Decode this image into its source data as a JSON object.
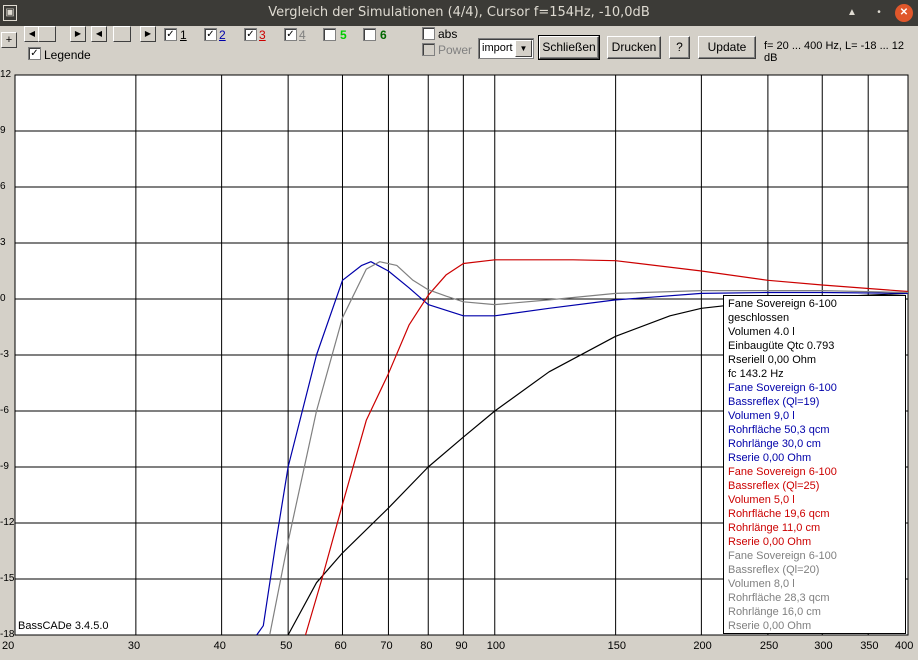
{
  "window": {
    "title": "Vergleich der Simulationen (4/4), Cursor f=154Hz, -10,0dB",
    "icon": "app-icon",
    "buttons": [
      "maximize-icon",
      "restore-icon",
      "close-icon"
    ]
  },
  "toolbar": {
    "plus_label": "+",
    "nav_icons": [
      "step-left-icon",
      "step-left-icon",
      "step-right-icon",
      "step-left-icon",
      "step-right-icon"
    ],
    "checkboxes": [
      {
        "label": "1",
        "checked": true,
        "color": "#000000"
      },
      {
        "label": "2",
        "checked": true,
        "color": "#0000aa"
      },
      {
        "label": "3",
        "checked": true,
        "color": "#cc0000"
      },
      {
        "label": "4",
        "checked": true,
        "color": "#808080"
      },
      {
        "label": "5",
        "checked": false,
        "color": "#00cc00"
      },
      {
        "label": "6",
        "checked": false,
        "color": "#006600"
      }
    ],
    "legende_label": "Legende",
    "abs_label": "abs",
    "power_label": "Power",
    "import_value": "import",
    "close_label": "Schließen",
    "print_label": "Drucken",
    "help_label": "?",
    "update_label": "Update",
    "range_info": "f= 20 ... 400 Hz, L= -18 ... 12 dB"
  },
  "chart_data": {
    "type": "line",
    "x_scale": "log",
    "xlim": [
      20,
      400
    ],
    "ylim": [
      -18,
      12
    ],
    "x_ticks": [
      20,
      30,
      40,
      50,
      60,
      70,
      80,
      90,
      100,
      150,
      200,
      250,
      300,
      350,
      400
    ],
    "y_ticks": [
      12,
      9,
      6,
      3,
      0,
      -3,
      -6,
      -9,
      -12,
      -15,
      -18
    ],
    "y_tick_labels": [
      "12",
      "9",
      "6",
      "3",
      "0",
      "-3",
      "-6",
      "-9",
      "-12",
      "-15",
      "-18"
    ],
    "grid": true,
    "series": [
      {
        "color": "#000000",
        "points": [
          [
            50,
            -18
          ],
          [
            55,
            -15.2
          ],
          [
            60,
            -13.6
          ],
          [
            70,
            -11.2
          ],
          [
            80,
            -9.0
          ],
          [
            90,
            -7.4
          ],
          [
            100,
            -6.0
          ],
          [
            120,
            -3.9
          ],
          [
            150,
            -2.0
          ],
          [
            180,
            -0.9
          ],
          [
            200,
            -0.5
          ],
          [
            250,
            -0.1
          ],
          [
            300,
            0.1
          ],
          [
            400,
            0.3
          ]
        ]
      },
      {
        "color": "#0000aa",
        "points": [
          [
            45,
            -18
          ],
          [
            46,
            -17.5
          ],
          [
            48,
            -13
          ],
          [
            50,
            -9
          ],
          [
            55,
            -3
          ],
          [
            60,
            1
          ],
          [
            64,
            1.8
          ],
          [
            66,
            2.0
          ],
          [
            70,
            1.5
          ],
          [
            75,
            0.6
          ],
          [
            80,
            -0.3
          ],
          [
            90,
            -0.9
          ],
          [
            100,
            -0.9
          ],
          [
            120,
            -0.5
          ],
          [
            150,
            -0.05
          ],
          [
            200,
            0.3
          ],
          [
            250,
            0.35
          ],
          [
            300,
            0.35
          ],
          [
            400,
            0.3
          ]
        ]
      },
      {
        "color": "#cc0000",
        "points": [
          [
            53,
            -18
          ],
          [
            56,
            -15
          ],
          [
            60,
            -11
          ],
          [
            65,
            -6.5
          ],
          [
            70,
            -4
          ],
          [
            75,
            -1.4
          ],
          [
            80,
            0.2
          ],
          [
            85,
            1.3
          ],
          [
            90,
            1.9
          ],
          [
            100,
            2.1
          ],
          [
            130,
            2.1
          ],
          [
            150,
            2.05
          ],
          [
            200,
            1.5
          ],
          [
            250,
            1.0
          ],
          [
            300,
            0.75
          ],
          [
            400,
            0.4
          ]
        ]
      },
      {
        "color": "#808080",
        "points": [
          [
            47,
            -18
          ],
          [
            50,
            -13
          ],
          [
            55,
            -6
          ],
          [
            60,
            -1
          ],
          [
            65,
            1.6
          ],
          [
            68,
            2.0
          ],
          [
            72,
            1.8
          ],
          [
            76,
            1.0
          ],
          [
            80,
            0.5
          ],
          [
            85,
            0.15
          ],
          [
            90,
            -0.15
          ],
          [
            100,
            -0.3
          ],
          [
            120,
            -0.05
          ],
          [
            150,
            0.3
          ],
          [
            200,
            0.45
          ],
          [
            300,
            0.45
          ],
          [
            400,
            0.35
          ]
        ]
      }
    ]
  },
  "legend": [
    {
      "color": "#000000",
      "lines": [
        "Fane Sovereign 6-100",
        "geschlossen",
        "Volumen 4.0 l",
        "Einbaugüte Qtc 0.793",
        "Rseriell 0,00 Ohm",
        "fc 143.2 Hz"
      ]
    },
    {
      "color": "#0000aa",
      "lines": [
        "Fane Sovereign 6-100",
        "Bassreflex (Ql=19)",
        "Volumen 9,0 l",
        "Rohrfläche 50,3 qcm",
        "Rohrlänge 30,0 cm",
        "Rserie 0,00 Ohm"
      ]
    },
    {
      "color": "#cc0000",
      "lines": [
        "Fane Sovereign 6-100",
        "Bassreflex (Ql=25)",
        "Volumen 5,0 l",
        "Rohrfläche 19,6 qcm",
        "Rohrlänge 11,0 cm",
        "Rserie 0,00 Ohm"
      ]
    },
    {
      "color": "#808080",
      "lines": [
        "Fane Sovereign 6-100",
        "Bassreflex (Ql=20)",
        "Volumen 8,0 l",
        "Rohrfläche 28,3 qcm",
        "Rohrlänge 16,0 cm",
        "Rserie 0,00 Ohm"
      ]
    }
  ],
  "version": "BassCADe 3.4.5.0"
}
